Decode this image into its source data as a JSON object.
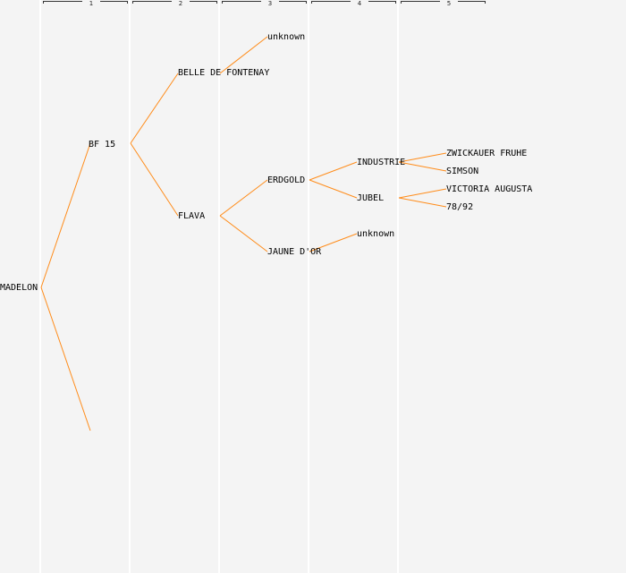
{
  "generations": [
    "1",
    "2",
    "3",
    "4",
    "5"
  ],
  "colors": {
    "background": "#f4f4f4",
    "column_divider": "#ffffff",
    "edge": "#ff8c1a",
    "text": "#000000"
  },
  "pedigree": {
    "root": "MADELON",
    "gen1": [
      "BF 15",
      ""
    ],
    "gen2": [
      "BELLE DE FONTENAY",
      "FLAVA"
    ],
    "gen3": [
      "unknown",
      "ERDGOLD",
      "JAUNE D'OR"
    ],
    "gen4": [
      "INDUSTRIE",
      "JUBEL",
      "unknown"
    ],
    "gen5": [
      "ZWICKAUER FRUHE",
      "SIMSON",
      "VICTORIA AUGUSTA",
      "78/92"
    ]
  }
}
